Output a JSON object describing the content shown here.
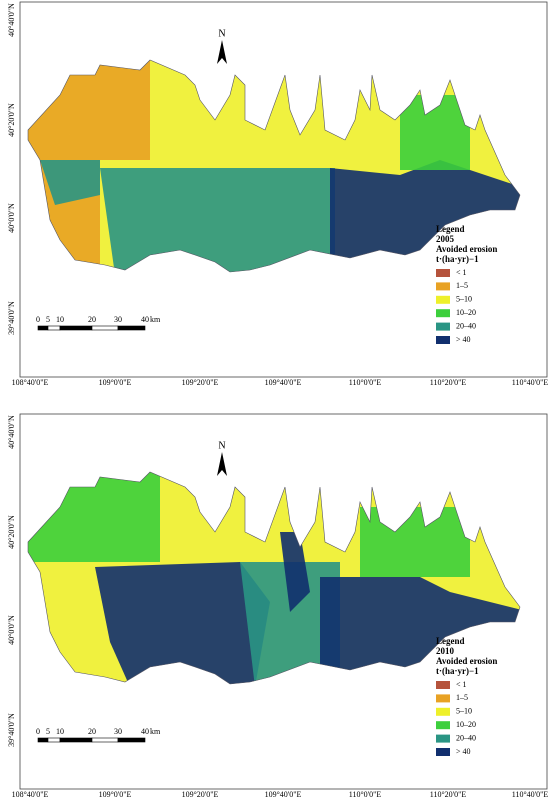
{
  "maps": [
    {
      "north": "N",
      "lat_labels": [
        "40°40'0\"N",
        "40°20'0\"N",
        "40°0'0\"N",
        "39°40'0\"N"
      ],
      "lon_labels": [
        "108°40'0\"E",
        "109°0'0\"E",
        "109°20'0\"E",
        "109°40'0\"E",
        "110°0'0\"E",
        "110°20'0\"E",
        "110°40'0\"E"
      ],
      "scale": {
        "labels": [
          "0",
          "5",
          "10",
          "20",
          "30",
          "40"
        ],
        "unit": "km"
      },
      "legend": {
        "title": "Legend",
        "year": "2005",
        "subtitle": "Avoided erosion",
        "unit": "t·(ha·yr)−1",
        "items": [
          {
            "label": "< 1",
            "color": "#b5533c"
          },
          {
            "label": "1–5",
            "color": "#e8a224"
          },
          {
            "label": "5–10",
            "color": "#eef02a"
          },
          {
            "label": "10–20",
            "color": "#3ccf3c"
          },
          {
            "label": "20–40",
            "color": "#2a9584"
          },
          {
            "label": "> 40",
            "color": "#112f6e"
          }
        ]
      }
    },
    {
      "north": "N",
      "lat_labels": [
        "40°40'0\"N",
        "40°20'0\"N",
        "40°0'0\"N",
        "39°40'0\"N"
      ],
      "lon_labels": [
        "108°40'0\"E",
        "109°0'0\"E",
        "109°20'0\"E",
        "109°40'0\"E",
        "110°0'0\"E",
        "110°20'0\"E",
        "110°40'0\"E"
      ],
      "scale": {
        "labels": [
          "0",
          "5",
          "10",
          "20",
          "30",
          "40"
        ],
        "unit": "km"
      },
      "legend": {
        "title": "Legend",
        "year": "2010",
        "subtitle": "Avoided erosion",
        "unit": "t·(ha·yr)−1",
        "items": [
          {
            "label": "< 1",
            "color": "#b5533c"
          },
          {
            "label": "1–5",
            "color": "#e8a224"
          },
          {
            "label": "5–10",
            "color": "#eef02a"
          },
          {
            "label": "10–20",
            "color": "#3ccf3c"
          },
          {
            "label": "20–40",
            "color": "#2a9584"
          },
          {
            "label": "> 40",
            "color": "#112f6e"
          }
        ]
      }
    }
  ]
}
